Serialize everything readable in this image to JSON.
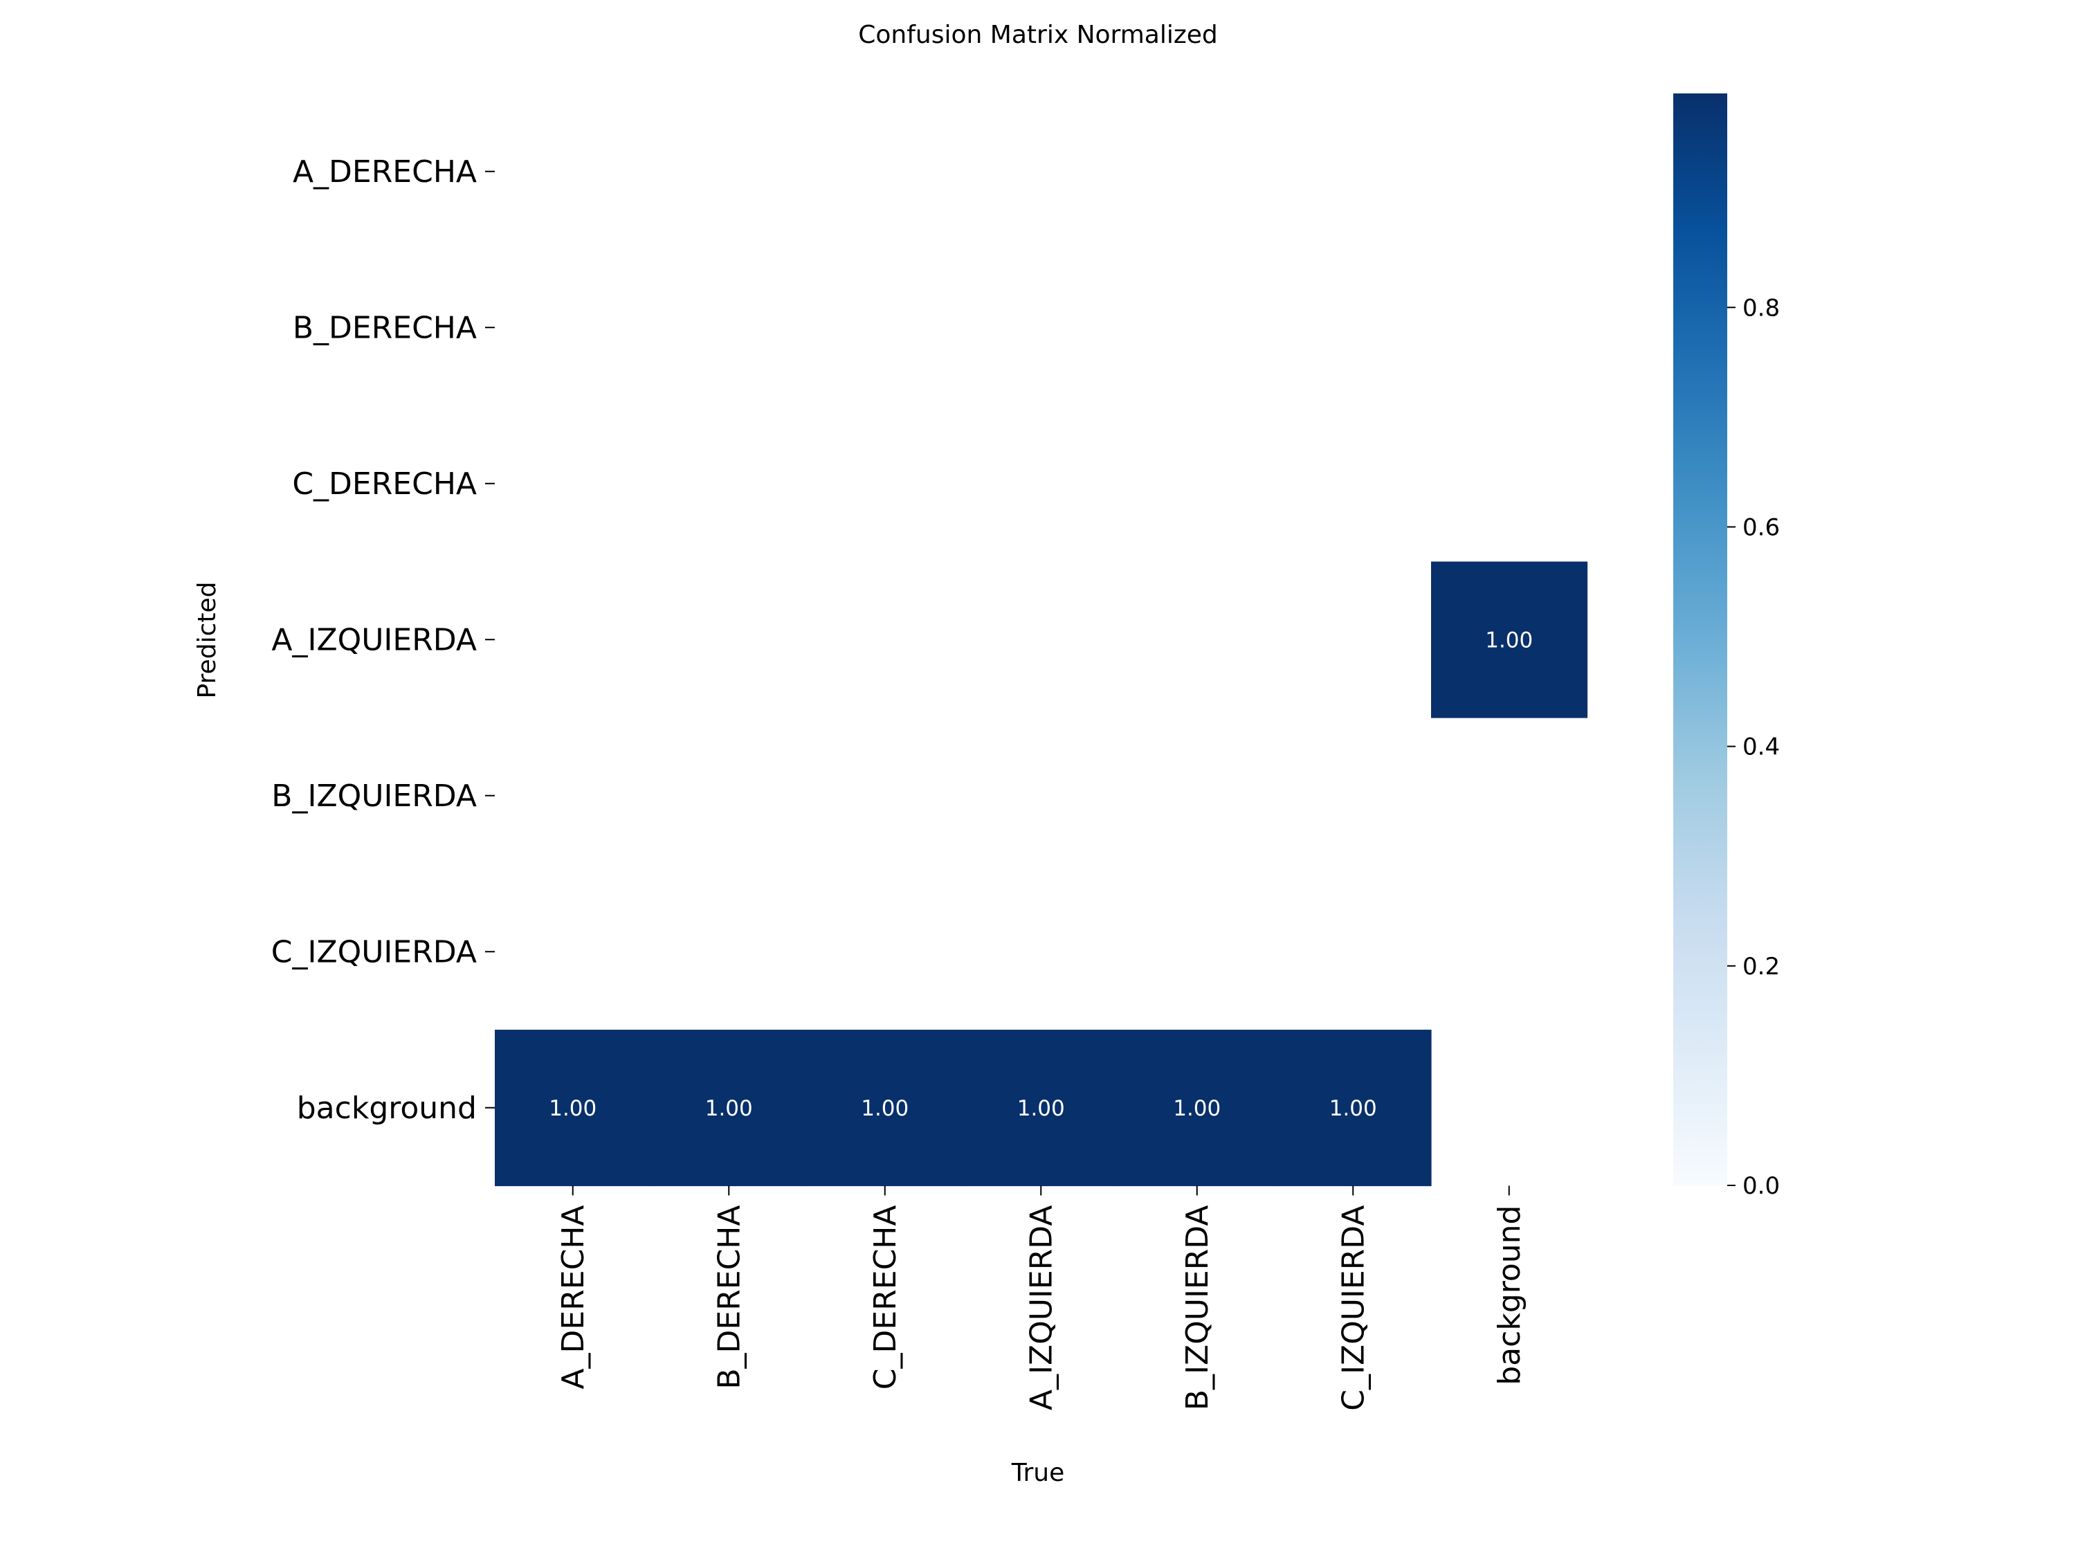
{
  "chart_data": {
    "type": "heatmap",
    "title": "Confusion Matrix Normalized",
    "xlabel": "True",
    "ylabel": "Predicted",
    "x_categories": [
      "A_DERECHA",
      "B_DERECHA",
      "C_DERECHA",
      "A_IZQUIERDA",
      "B_IZQUIERDA",
      "C_IZQUIERDA",
      "background"
    ],
    "y_categories": [
      "A_DERECHA",
      "B_DERECHA",
      "C_DERECHA",
      "A_IZQUIERDA",
      "B_IZQUIERDA",
      "C_IZQUIERDA",
      "background"
    ],
    "values": [
      [
        null,
        null,
        null,
        null,
        null,
        null,
        null
      ],
      [
        null,
        null,
        null,
        null,
        null,
        null,
        null
      ],
      [
        null,
        null,
        null,
        null,
        null,
        null,
        null
      ],
      [
        null,
        null,
        null,
        null,
        null,
        null,
        1.0
      ],
      [
        null,
        null,
        null,
        null,
        null,
        null,
        null
      ],
      [
        null,
        null,
        null,
        null,
        null,
        null,
        null
      ],
      [
        1.0,
        1.0,
        1.0,
        1.0,
        1.0,
        1.0,
        null
      ]
    ],
    "cell_labels": [
      [
        "",
        "",
        "",
        "",
        "",
        "",
        ""
      ],
      [
        "",
        "",
        "",
        "",
        "",
        "",
        ""
      ],
      [
        "",
        "",
        "",
        "",
        "",
        "",
        ""
      ],
      [
        "",
        "",
        "",
        "",
        "",
        "",
        "1.00"
      ],
      [
        "",
        "",
        "",
        "",
        "",
        "",
        ""
      ],
      [
        "",
        "",
        "",
        "",
        "",
        "",
        ""
      ],
      [
        "1.00",
        "1.00",
        "1.00",
        "1.00",
        "1.00",
        "1.00",
        ""
      ]
    ],
    "colorbar": {
      "range": [
        0,
        1
      ],
      "ticks": [
        0.0,
        0.2,
        0.4,
        0.6,
        0.8
      ],
      "tick_labels": [
        "0.0",
        "0.2",
        "0.4",
        "0.6",
        "0.8"
      ],
      "colormap": [
        "#f7fbff",
        "#deebf7",
        "#c6dbef",
        "#9ecae1",
        "#6baed6",
        "#4292c6",
        "#2171b5",
        "#08519c",
        "#08306b"
      ]
    },
    "cell_color": "#08306b",
    "cell_text_color": "#ffffff"
  }
}
